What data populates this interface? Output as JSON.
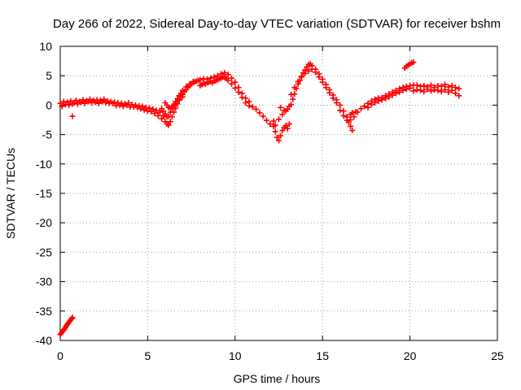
{
  "chart_data": {
    "type": "scatter",
    "title": "Day 266 of 2022, Sidereal Day-to-day VTEC variation (SDTVAR) for receiver bshm",
    "xlabel": "GPS time / hours",
    "ylabel": "SDTVAR / TECUs",
    "xlim": [
      0,
      25
    ],
    "ylim": [
      -40,
      10
    ],
    "xticks": [
      0,
      5,
      10,
      15,
      20,
      25
    ],
    "yticks": [
      10,
      5,
      0,
      -5,
      -10,
      -15,
      -20,
      -25,
      -30,
      -35,
      -40
    ],
    "grid": true,
    "marker": "+",
    "series": [
      {
        "name": "SDTVAR",
        "color": "#ff0000",
        "points": [
          [
            0.0,
            -39.0
          ],
          [
            0.1,
            -38.6
          ],
          [
            0.2,
            -38.2
          ],
          [
            0.3,
            -37.8
          ],
          [
            0.4,
            -37.3
          ],
          [
            0.5,
            -36.9
          ],
          [
            0.6,
            -36.5
          ],
          [
            0.7,
            -36.1
          ],
          [
            0.05,
            -38.8
          ],
          [
            0.15,
            -38.4
          ],
          [
            0.25,
            -38.0
          ],
          [
            0.35,
            -37.5
          ],
          [
            0.45,
            -37.1
          ],
          [
            0.55,
            -36.7
          ],
          [
            0.65,
            -36.3
          ],
          [
            0.7,
            -1.9
          ],
          [
            0.0,
            0.3
          ],
          [
            0.1,
            -0.2
          ],
          [
            0.2,
            0.6
          ],
          [
            0.3,
            0.1
          ],
          [
            0.4,
            0.5
          ],
          [
            0.5,
            0.0
          ],
          [
            0.6,
            0.7
          ],
          [
            0.7,
            0.2
          ],
          [
            0.8,
            0.4
          ],
          [
            0.9,
            0.8
          ],
          [
            1.0,
            0.2
          ],
          [
            1.1,
            0.6
          ],
          [
            1.2,
            0.5
          ],
          [
            1.3,
            0.9
          ],
          [
            1.4,
            0.3
          ],
          [
            1.5,
            0.7
          ],
          [
            1.6,
            0.6
          ],
          [
            1.7,
            1.0
          ],
          [
            1.8,
            0.4
          ],
          [
            1.9,
            0.8
          ],
          [
            2.0,
            0.5
          ],
          [
            2.1,
            0.9
          ],
          [
            2.2,
            0.3
          ],
          [
            2.3,
            0.8
          ],
          [
            2.4,
            0.6
          ],
          [
            2.5,
            1.0
          ],
          [
            2.6,
            0.4
          ],
          [
            2.7,
            0.7
          ],
          [
            2.8,
            0.3
          ],
          [
            2.9,
            0.6
          ],
          [
            3.0,
            0.3
          ],
          [
            3.1,
            0.5
          ],
          [
            3.2,
            -0.1
          ],
          [
            3.3,
            0.4
          ],
          [
            3.4,
            0.0
          ],
          [
            3.5,
            0.3
          ],
          [
            3.6,
            -0.2
          ],
          [
            3.7,
            0.2
          ],
          [
            3.8,
            0.0
          ],
          [
            3.9,
            0.4
          ],
          [
            4.0,
            -0.3
          ],
          [
            4.1,
            0.1
          ],
          [
            4.2,
            -0.3
          ],
          [
            4.3,
            0.0
          ],
          [
            4.4,
            -0.4
          ],
          [
            4.5,
            -0.1
          ],
          [
            4.6,
            -0.6
          ],
          [
            4.7,
            -0.2
          ],
          [
            4.8,
            -0.8
          ],
          [
            4.9,
            -0.4
          ],
          [
            5.0,
            -1.0
          ],
          [
            5.1,
            -0.5
          ],
          [
            5.2,
            -1.1
          ],
          [
            5.3,
            -0.7
          ],
          [
            5.4,
            -1.4
          ],
          [
            5.5,
            -0.9
          ],
          [
            5.6,
            -1.8
          ],
          [
            5.7,
            -1.2
          ],
          [
            5.8,
            -2.3
          ],
          [
            5.9,
            -1.8
          ],
          [
            6.0,
            -2.8
          ],
          [
            6.1,
            -3.2
          ],
          [
            6.2,
            -3.4
          ],
          [
            6.3,
            -2.8
          ],
          [
            6.4,
            -2.0
          ],
          [
            6.5,
            -1.2
          ],
          [
            6.6,
            -0.5
          ],
          [
            6.7,
            0.2
          ],
          [
            6.8,
            0.8
          ],
          [
            6.9,
            1.4
          ],
          [
            7.0,
            1.8
          ],
          [
            7.1,
            2.3
          ],
          [
            7.2,
            2.6
          ],
          [
            7.3,
            3.0
          ],
          [
            7.4,
            3.3
          ],
          [
            7.5,
            3.6
          ],
          [
            7.6,
            3.8
          ],
          [
            7.7,
            4.0
          ],
          [
            7.8,
            4.1
          ],
          [
            7.9,
            4.2
          ],
          [
            5.8,
            -0.6
          ],
          [
            5.9,
            -1.0
          ],
          [
            6.0,
            -1.5
          ],
          [
            6.1,
            -2.0
          ],
          [
            6.2,
            -1.9
          ],
          [
            6.3,
            -1.2
          ],
          [
            6.4,
            -0.6
          ],
          [
            6.5,
            0.0
          ],
          [
            6.6,
            0.6
          ],
          [
            6.7,
            1.1
          ],
          [
            6.8,
            1.6
          ],
          [
            6.9,
            2.0
          ],
          [
            7.0,
            2.5
          ],
          [
            7.2,
            3.1
          ],
          [
            7.4,
            3.6
          ],
          [
            7.6,
            4.0
          ],
          [
            6.0,
            0.4
          ],
          [
            6.1,
            0.0
          ],
          [
            6.2,
            -0.4
          ],
          [
            6.3,
            -0.6
          ],
          [
            6.4,
            -0.2
          ],
          [
            6.6,
            0.3
          ],
          [
            6.8,
            0.9
          ],
          [
            7.0,
            1.4
          ],
          [
            8.0,
            3.3
          ],
          [
            8.1,
            3.5
          ],
          [
            8.2,
            3.7
          ],
          [
            8.3,
            3.6
          ],
          [
            8.4,
            3.8
          ],
          [
            8.5,
            3.9
          ],
          [
            8.6,
            4.0
          ],
          [
            8.7,
            3.8
          ],
          [
            8.8,
            4.1
          ],
          [
            8.9,
            4.2
          ],
          [
            9.0,
            4.3
          ],
          [
            9.1,
            4.5
          ],
          [
            9.2,
            4.6
          ],
          [
            9.3,
            4.8
          ],
          [
            9.4,
            4.7
          ],
          [
            9.5,
            4.5
          ],
          [
            8.0,
            4.3
          ],
          [
            8.2,
            4.5
          ],
          [
            8.4,
            4.4
          ],
          [
            8.6,
            4.6
          ],
          [
            8.8,
            4.8
          ],
          [
            9.0,
            5.0
          ],
          [
            9.2,
            5.3
          ],
          [
            9.4,
            5.5
          ],
          [
            9.6,
            5.2
          ],
          [
            9.8,
            4.6
          ],
          [
            10.0,
            3.9
          ],
          [
            10.2,
            3.0
          ],
          [
            10.4,
            2.0
          ],
          [
            10.6,
            1.2
          ],
          [
            10.8,
            0.6
          ],
          [
            9.6,
            4.2
          ],
          [
            9.8,
            3.6
          ],
          [
            10.0,
            2.9
          ],
          [
            10.2,
            2.2
          ],
          [
            10.4,
            1.3
          ],
          [
            10.6,
            0.4
          ],
          [
            10.8,
            -0.1
          ],
          [
            11.0,
            -0.3
          ],
          [
            11.2,
            -0.7
          ],
          [
            11.4,
            -1.3
          ],
          [
            11.6,
            -1.9
          ],
          [
            11.8,
            -2.6
          ],
          [
            12.0,
            -3.2
          ],
          [
            12.2,
            -3.6
          ],
          [
            12.3,
            -4.5
          ],
          [
            12.4,
            -5.5
          ],
          [
            12.5,
            -6.0
          ],
          [
            12.6,
            -5.2
          ],
          [
            12.7,
            -4.3
          ],
          [
            12.8,
            -3.8
          ],
          [
            12.9,
            -3.5
          ],
          [
            13.0,
            -4.0
          ],
          [
            13.1,
            -3.2
          ],
          [
            12.2,
            -2.7
          ],
          [
            12.3,
            -3.4
          ],
          [
            12.5,
            -2.4
          ],
          [
            12.7,
            -1.6
          ],
          [
            12.9,
            -1.0
          ],
          [
            13.1,
            -0.2
          ],
          [
            12.6,
            -0.4
          ],
          [
            12.8,
            -0.9
          ],
          [
            13.0,
            -0.7
          ],
          [
            13.2,
            0.1
          ],
          [
            13.3,
            1.0
          ],
          [
            13.4,
            1.9
          ],
          [
            13.5,
            2.8
          ],
          [
            13.6,
            3.6
          ],
          [
            13.7,
            4.2
          ],
          [
            13.8,
            4.9
          ],
          [
            13.9,
            5.5
          ],
          [
            14.0,
            6.0
          ],
          [
            14.1,
            6.5
          ],
          [
            14.2,
            6.9
          ],
          [
            14.3,
            7.0
          ],
          [
            13.2,
            1.8
          ],
          [
            13.4,
            3.0
          ],
          [
            13.6,
            4.0
          ],
          [
            13.8,
            4.8
          ],
          [
            14.0,
            5.4
          ],
          [
            14.2,
            5.8
          ],
          [
            14.4,
            6.1
          ],
          [
            14.4,
            6.7
          ],
          [
            14.6,
            6.1
          ],
          [
            14.8,
            5.3
          ],
          [
            15.0,
            4.4
          ],
          [
            15.2,
            3.5
          ],
          [
            15.4,
            2.6
          ],
          [
            15.6,
            1.7
          ],
          [
            15.8,
            0.9
          ],
          [
            14.6,
            5.6
          ],
          [
            14.8,
            4.8
          ],
          [
            15.0,
            3.9
          ],
          [
            15.2,
            3.0
          ],
          [
            15.4,
            2.1
          ],
          [
            15.6,
            1.2
          ],
          [
            15.8,
            0.4
          ],
          [
            16.0,
            0.0
          ],
          [
            16.2,
            -1.0
          ],
          [
            16.4,
            -2.0
          ],
          [
            16.5,
            -2.9
          ],
          [
            16.6,
            -3.6
          ],
          [
            16.7,
            -4.3
          ],
          [
            16.0,
            -0.9
          ],
          [
            16.2,
            -1.8
          ],
          [
            16.4,
            -2.6
          ],
          [
            16.6,
            -2.5
          ],
          [
            16.6,
            -1.6
          ],
          [
            16.7,
            -1.3
          ],
          [
            16.8,
            -2.0
          ],
          [
            16.9,
            -1.1
          ],
          [
            17.0,
            -1.2
          ],
          [
            17.2,
            -0.6
          ],
          [
            17.4,
            -0.2
          ],
          [
            17.6,
            0.3
          ],
          [
            17.8,
            0.7
          ],
          [
            18.0,
            1.0
          ],
          [
            18.2,
            1.2
          ],
          [
            18.4,
            1.3
          ],
          [
            18.6,
            1.6
          ],
          [
            18.8,
            1.9
          ],
          [
            19.0,
            2.2
          ],
          [
            19.2,
            2.5
          ],
          [
            19.4,
            2.8
          ],
          [
            19.6,
            3.0
          ],
          [
            19.8,
            3.2
          ],
          [
            20.0,
            3.3
          ],
          [
            17.6,
            -0.4
          ],
          [
            17.8,
            0.1
          ],
          [
            18.0,
            0.4
          ],
          [
            18.2,
            0.7
          ],
          [
            18.4,
            0.9
          ],
          [
            18.6,
            1.1
          ],
          [
            18.8,
            1.4
          ],
          [
            19.0,
            1.7
          ],
          [
            19.2,
            2.0
          ],
          [
            19.4,
            2.2
          ],
          [
            19.6,
            2.5
          ],
          [
            19.8,
            2.7
          ],
          [
            20.0,
            2.9
          ],
          [
            19.7,
            6.3
          ],
          [
            19.8,
            6.6
          ],
          [
            19.9,
            6.8
          ],
          [
            20.0,
            7.0
          ],
          [
            20.1,
            7.2
          ],
          [
            20.2,
            7.3
          ],
          [
            20.2,
            3.4
          ],
          [
            20.4,
            3.4
          ],
          [
            20.6,
            3.2
          ],
          [
            20.8,
            3.3
          ],
          [
            21.0,
            3.1
          ],
          [
            21.2,
            3.4
          ],
          [
            21.4,
            3.0
          ],
          [
            21.6,
            3.3
          ],
          [
            21.8,
            3.2
          ],
          [
            22.0,
            3.5
          ],
          [
            22.2,
            3.1
          ],
          [
            22.4,
            3.3
          ],
          [
            22.6,
            3.0
          ],
          [
            22.8,
            2.8
          ],
          [
            20.2,
            2.4
          ],
          [
            20.4,
            2.6
          ],
          [
            20.6,
            2.5
          ],
          [
            20.8,
            2.3
          ],
          [
            21.0,
            2.7
          ],
          [
            21.2,
            2.4
          ],
          [
            21.4,
            2.6
          ],
          [
            21.6,
            2.5
          ],
          [
            21.8,
            2.3
          ],
          [
            22.0,
            2.6
          ],
          [
            22.2,
            2.2
          ],
          [
            22.4,
            2.5
          ],
          [
            22.6,
            2.0
          ],
          [
            22.8,
            1.6
          ]
        ]
      }
    ]
  }
}
